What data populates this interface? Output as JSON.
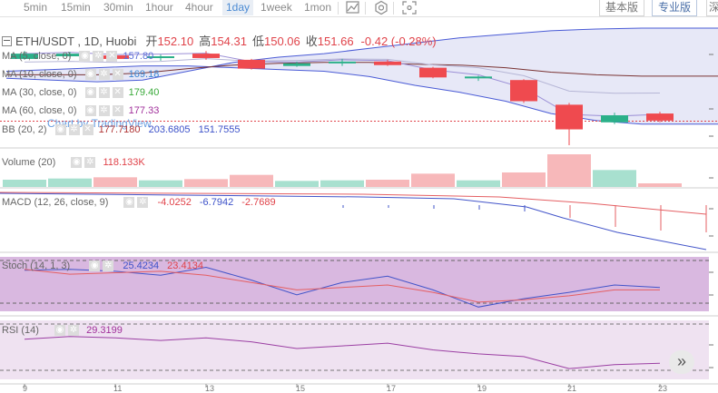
{
  "toolbar": {
    "intervals": [
      "5min",
      "15min",
      "30min",
      "1hour",
      "4hour",
      "1day",
      "1week",
      "1mon"
    ],
    "active_interval": "1day",
    "version_basic": "基本版",
    "version_pro": "专业版",
    "version_other": "深"
  },
  "symbol": {
    "title": "ETH/USDT , 1D, Huobi",
    "open_label": "开",
    "open": "152.10",
    "high_label": "高",
    "high": "154.31",
    "low_label": "低",
    "low": "150.06",
    "close_label": "收",
    "close": "151.66",
    "change": "-0.42 (-0.28%)"
  },
  "indicators": {
    "ma5": {
      "label": "MA (5, close, 0)",
      "value": "157.80",
      "color": "#5b6fd8"
    },
    "ma10": {
      "label": "MA (10, close, 0)",
      "value": "169.18",
      "color": "#3a86d4"
    },
    "ma30": {
      "label": "MA (30, close, 0)",
      "value": "179.40",
      "color": "#3aaa3a"
    },
    "ma60": {
      "label": "MA (60, close, 0)",
      "value": "177.33",
      "color": "#a1309b"
    },
    "bb": {
      "label": "BB (20, 2)",
      "v1": "177.7180",
      "v2": "203.6805",
      "v3": "151.7555"
    },
    "watermark": "Chart by TradingView",
    "volume": {
      "label": "Volume (20)",
      "value": "118.133K"
    },
    "macd": {
      "label": "MACD (12, 26, close, 9)",
      "v1": "-4.0252",
      "v2": "-6.7942",
      "v3": "-2.7689"
    },
    "stoch": {
      "label": "Stoch (14, 1, 3)",
      "v1": "25.4234",
      "v2": "23.4134"
    },
    "rsi": {
      "label": "RSI (14)",
      "value": "29.3199"
    }
  },
  "colors": {
    "up": "#2bb089",
    "down": "#ef4a4f",
    "ma_dark": "#7a3333",
    "bb_band": "#4a5bd6",
    "stoch_fill": "#d9b8e0",
    "rsi_fill": "#efe2f1",
    "rsi_line": "#9b3fa3"
  },
  "x_axis": [
    "9",
    "11",
    "13",
    "15",
    "17",
    "19",
    "21",
    "23"
  ],
  "scroll_button": "»",
  "chart_data": {
    "type": "candlestick",
    "note_fields": "candles ordered left to right",
    "candles": [
      {
        "o": 190,
        "h": 191.5,
        "l": 186.5,
        "c": 187,
        "dir": "up",
        "vol": 60
      },
      {
        "o": 190,
        "h": 191,
        "l": 187,
        "c": 188.5,
        "dir": "up",
        "vol": 70
      },
      {
        "o": 189,
        "h": 191,
        "l": 186.5,
        "c": 187,
        "dir": "down",
        "vol": 80
      },
      {
        "o": 188,
        "h": 189.5,
        "l": 186,
        "c": 188.5,
        "dir": "up",
        "vol": 55
      },
      {
        "o": 190,
        "h": 191.5,
        "l": 186.5,
        "c": 187.5,
        "dir": "down",
        "vol": 65
      },
      {
        "o": 186.5,
        "h": 187,
        "l": 181,
        "c": 181.5,
        "dir": "down",
        "vol": 100
      },
      {
        "o": 184.5,
        "h": 185.5,
        "l": 182.5,
        "c": 183,
        "dir": "up",
        "vol": 50
      },
      {
        "o": 185.5,
        "h": 187,
        "l": 183,
        "c": 184.5,
        "dir": "up",
        "vol": 55
      },
      {
        "o": 185.5,
        "h": 186.5,
        "l": 183,
        "c": 183.5,
        "dir": "down",
        "vol": 60
      },
      {
        "o": 182,
        "h": 182.5,
        "l": 176,
        "c": 176.5,
        "dir": "down",
        "vol": 110
      },
      {
        "o": 177,
        "h": 177.5,
        "l": 174.5,
        "c": 176,
        "dir": "up",
        "vol": 55
      },
      {
        "o": 175,
        "h": 175.5,
        "l": 162,
        "c": 163,
        "dir": "down",
        "vol": 120
      },
      {
        "o": 161,
        "h": 162,
        "l": 138,
        "c": 147,
        "dir": "down",
        "vol": 270
      },
      {
        "o": 155,
        "h": 156.5,
        "l": 150,
        "c": 151,
        "dir": "up",
        "vol": 140
      },
      {
        "o": 156,
        "h": 157,
        "l": 151,
        "c": 152,
        "dir": "down",
        "vol": 30
      }
    ],
    "bb_upper": [
      176,
      175,
      174,
      175,
      180,
      185,
      188,
      190,
      193,
      196,
      199,
      201,
      203,
      204,
      204.5
    ],
    "bb_lower": [
      180,
      181,
      182,
      183,
      183,
      182,
      181,
      180,
      177,
      172,
      168,
      163,
      156,
      152,
      150
    ],
    "stoch_k": [
      80,
      82,
      78,
      70,
      86,
      60,
      30,
      55,
      68,
      40,
      5,
      22,
      35,
      50,
      45
    ],
    "stoch_d": [
      82,
      72,
      75,
      78,
      70,
      55,
      40,
      45,
      50,
      35,
      15,
      20,
      28,
      40,
      40
    ],
    "rsi": [
      48,
      50,
      49,
      47,
      49,
      46,
      41,
      43,
      45,
      40,
      37,
      35,
      26,
      29,
      30
    ]
  }
}
